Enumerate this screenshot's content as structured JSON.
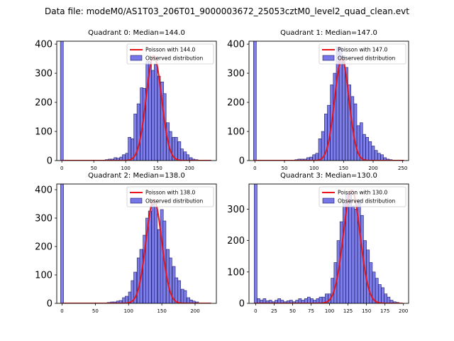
{
  "figure": {
    "title": "Data file: modeM0/AS1T03_206T01_9000003672_25053cztM0_level2_quad_clean.evt"
  },
  "colors": {
    "hist_fill": "#7777e8",
    "hist_edge": "#1a1a66",
    "poisson_line": "#e8161a",
    "axes": "#000000"
  },
  "chart_data": [
    {
      "type": "bar",
      "title": "Quadrant 0: Median=144.0",
      "xlim": [
        -8,
        242
      ],
      "ylim": [
        0,
        410
      ],
      "xticks": [
        0,
        50,
        100,
        150,
        200
      ],
      "yticks": [
        0,
        100,
        200,
        300,
        400
      ],
      "legend": [
        "Poisson with 144.0",
        "Observed distribution"
      ],
      "legend_position": "top-right",
      "poisson_mean": 144.0,
      "poisson_peak": 360,
      "bin_width": 4.6,
      "bins": [
        [
          0,
          430
        ],
        [
          70,
          3
        ],
        [
          75,
          5
        ],
        [
          79,
          5
        ],
        [
          84,
          10
        ],
        [
          88,
          8
        ],
        [
          93,
          12
        ],
        [
          97,
          20
        ],
        [
          102,
          25
        ],
        [
          106,
          80
        ],
        [
          111,
          75
        ],
        [
          115,
          160
        ],
        [
          120,
          195
        ],
        [
          125,
          250
        ],
        [
          129,
          248
        ],
        [
          134,
          340
        ],
        [
          138,
          340
        ],
        [
          143,
          310
        ],
        [
          147,
          330
        ],
        [
          152,
          290
        ],
        [
          157,
          270
        ],
        [
          161,
          230
        ],
        [
          166,
          130
        ],
        [
          170,
          100
        ],
        [
          175,
          80
        ],
        [
          179,
          80
        ],
        [
          184,
          65
        ],
        [
          188,
          40
        ],
        [
          193,
          30
        ],
        [
          197,
          20
        ],
        [
          202,
          10
        ],
        [
          206,
          5
        ],
        [
          211,
          3
        ]
      ]
    },
    {
      "type": "bar",
      "title": "Quadrant 1: Median=147.0",
      "xlim": [
        -10,
        260
      ],
      "ylim": [
        0,
        410
      ],
      "xticks": [
        0,
        50,
        100,
        150,
        200,
        250
      ],
      "yticks": [
        0,
        100,
        200,
        300,
        400
      ],
      "legend": [
        "Poisson with 147.0",
        "Observed distribution"
      ],
      "legend_position": "top-right",
      "poisson_mean": 147.0,
      "poisson_peak": 350,
      "bin_width": 4.8,
      "bins": [
        [
          0,
          430
        ],
        [
          70,
          3
        ],
        [
          75,
          5
        ],
        [
          80,
          5
        ],
        [
          85,
          5
        ],
        [
          90,
          10
        ],
        [
          95,
          12
        ],
        [
          100,
          20
        ],
        [
          105,
          25
        ],
        [
          110,
          75
        ],
        [
          115,
          100
        ],
        [
          120,
          160
        ],
        [
          125,
          190
        ],
        [
          130,
          260
        ],
        [
          135,
          300
        ],
        [
          140,
          390
        ],
        [
          145,
          390
        ],
        [
          150,
          360
        ],
        [
          155,
          320
        ],
        [
          160,
          260
        ],
        [
          165,
          220
        ],
        [
          170,
          195
        ],
        [
          175,
          120
        ],
        [
          180,
          130
        ],
        [
          185,
          90
        ],
        [
          190,
          80
        ],
        [
          195,
          65
        ],
        [
          200,
          50
        ],
        [
          205,
          35
        ],
        [
          210,
          25
        ],
        [
          215,
          20
        ],
        [
          220,
          10
        ],
        [
          225,
          5
        ],
        [
          230,
          3
        ]
      ]
    },
    {
      "type": "bar",
      "title": "Quadrant 2: Median=138.0",
      "xlim": [
        -8,
        232
      ],
      "ylim": [
        0,
        420
      ],
      "xticks": [
        0,
        50,
        100,
        150,
        200
      ],
      "yticks": [
        0,
        100,
        200,
        300,
        400
      ],
      "legend": [
        "Poisson with 138.0",
        "Observed distribution"
      ],
      "legend_position": "top-right",
      "poisson_mean": 138.0,
      "poisson_peak": 365,
      "bin_width": 4.4,
      "bins": [
        [
          0,
          430
        ],
        [
          70,
          3
        ],
        [
          75,
          5
        ],
        [
          79,
          5
        ],
        [
          84,
          8
        ],
        [
          88,
          10
        ],
        [
          93,
          20
        ],
        [
          97,
          25
        ],
        [
          102,
          40
        ],
        [
          106,
          80
        ],
        [
          110,
          110
        ],
        [
          115,
          160
        ],
        [
          119,
          190
        ],
        [
          124,
          240
        ],
        [
          128,
          300
        ],
        [
          132,
          325
        ],
        [
          137,
          350
        ],
        [
          141,
          340
        ],
        [
          146,
          260
        ],
        [
          150,
          330
        ],
        [
          154,
          290
        ],
        [
          159,
          190
        ],
        [
          163,
          160
        ],
        [
          168,
          130
        ],
        [
          172,
          90
        ],
        [
          176,
          80
        ],
        [
          181,
          50
        ],
        [
          185,
          45
        ],
        [
          190,
          20
        ],
        [
          194,
          12
        ],
        [
          198,
          8
        ],
        [
          203,
          5
        ]
      ]
    },
    {
      "type": "bar",
      "title": "Quadrant 3: Median=130.0",
      "xlim": [
        -9,
        207
      ],
      "ylim": [
        0,
        380
      ],
      "xticks": [
        0,
        25,
        50,
        75,
        100,
        125,
        150,
        175,
        200
      ],
      "yticks": [
        0,
        100,
        200,
        300
      ],
      "legend": [
        "Poisson with 130.0",
        "Observed distribution"
      ],
      "legend_position": "top-right",
      "poisson_mean": 130.0,
      "poisson_peak": 360,
      "bin_width": 3.9,
      "bins": [
        [
          0,
          430
        ],
        [
          4,
          15
        ],
        [
          8,
          10
        ],
        [
          12,
          15
        ],
        [
          16,
          8
        ],
        [
          20,
          10
        ],
        [
          24,
          5
        ],
        [
          28,
          10
        ],
        [
          32,
          15
        ],
        [
          36,
          10
        ],
        [
          40,
          5
        ],
        [
          44,
          8
        ],
        [
          48,
          10
        ],
        [
          52,
          5
        ],
        [
          56,
          10
        ],
        [
          60,
          15
        ],
        [
          64,
          10
        ],
        [
          68,
          15
        ],
        [
          72,
          20
        ],
        [
          76,
          15
        ],
        [
          80,
          10
        ],
        [
          84,
          15
        ],
        [
          88,
          20
        ],
        [
          92,
          20
        ],
        [
          96,
          30
        ],
        [
          100,
          30
        ],
        [
          104,
          80
        ],
        [
          108,
          130
        ],
        [
          112,
          200
        ],
        [
          116,
          260
        ],
        [
          120,
          320
        ],
        [
          124,
          350
        ],
        [
          128,
          350
        ],
        [
          132,
          310
        ],
        [
          136,
          300
        ],
        [
          140,
          330
        ],
        [
          144,
          280
        ],
        [
          148,
          200
        ],
        [
          152,
          170
        ],
        [
          156,
          130
        ],
        [
          160,
          100
        ],
        [
          164,
          80
        ],
        [
          168,
          60
        ],
        [
          172,
          50
        ],
        [
          176,
          30
        ],
        [
          180,
          20
        ],
        [
          184,
          10
        ],
        [
          188,
          5
        ],
        [
          192,
          3
        ]
      ]
    }
  ]
}
